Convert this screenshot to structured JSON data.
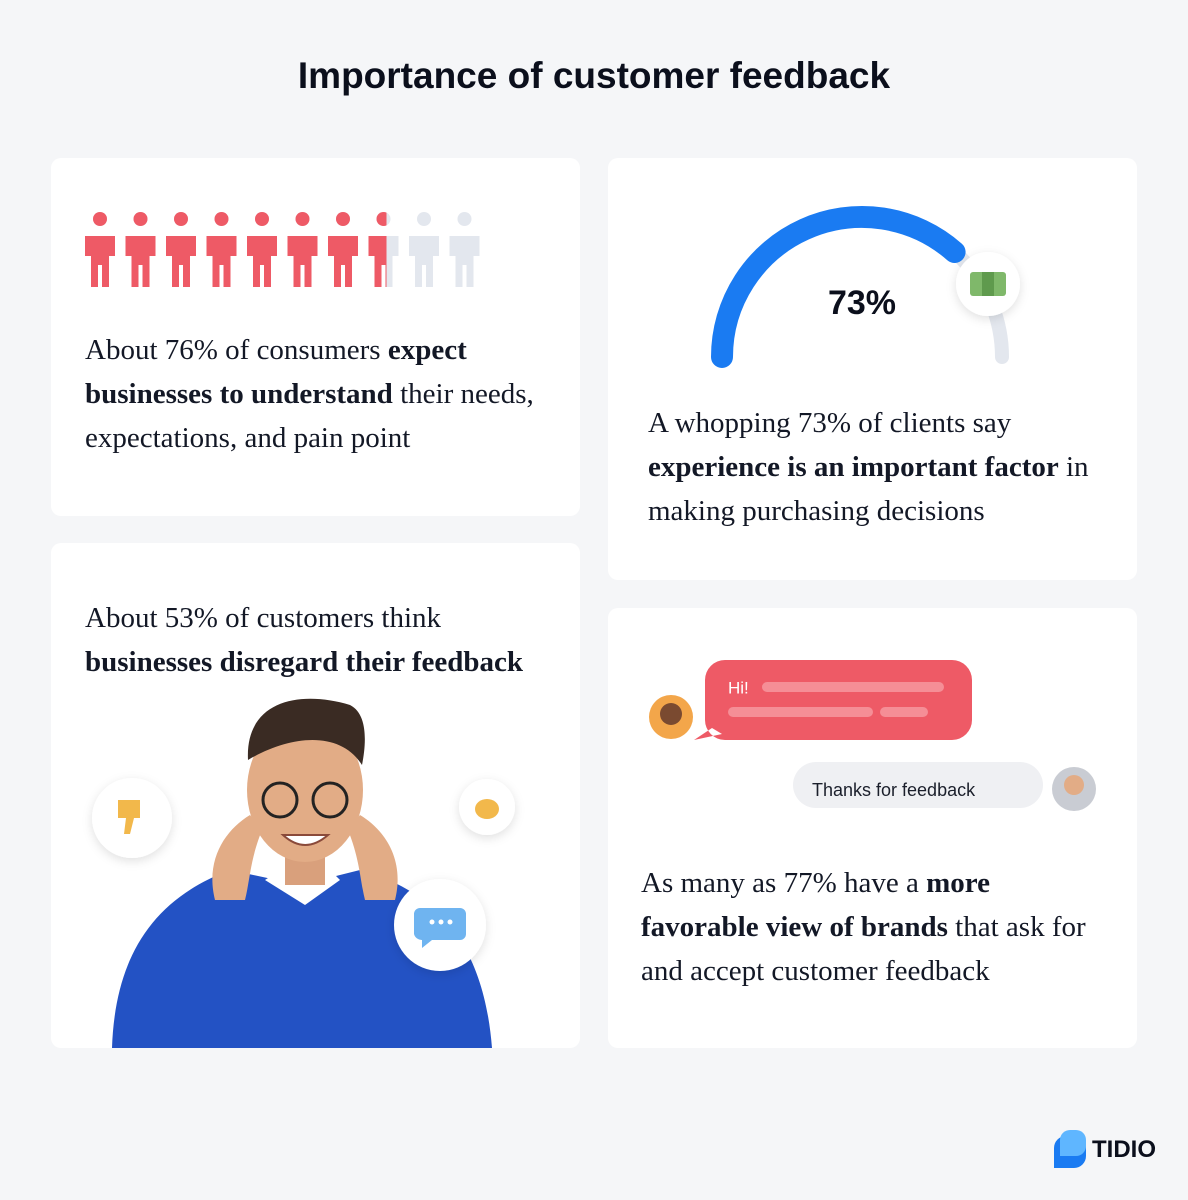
{
  "title": "Importance of customer feedback",
  "cards": [
    {
      "people_percent": 76,
      "text": [
        "About 76% of consumers ",
        "expect businesses to understand",
        " their needs, expectations, and pain point"
      ]
    },
    {
      "gauge": {
        "value": 73,
        "label": "73%"
      },
      "text": [
        "A whopping 73% of clients say ",
        "experience is an important factor",
        " in making purchasing decisions"
      ]
    },
    {
      "text": [
        "About 53% of customers think ",
        "businesses disregard their feedback"
      ]
    },
    {
      "chat": {
        "greeting": "Hi!",
        "reply": "Thanks for feedback"
      },
      "text": [
        "As many as 77% have a ",
        "more favorable view of brands",
        " that ask for and accept customer feedback"
      ]
    }
  ],
  "logo": "TIDIO"
}
